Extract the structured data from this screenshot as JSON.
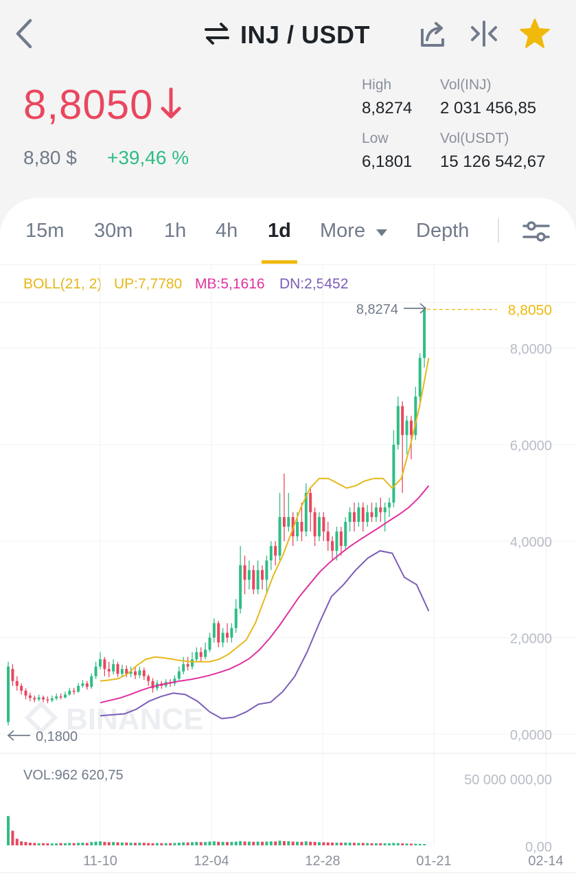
{
  "header": {
    "pair": "INJ / USDT",
    "icons": [
      "back-icon",
      "swap-icon",
      "share-icon",
      "compare-icon",
      "favorite-star-icon"
    ]
  },
  "ticker": {
    "last_price": "8,8050",
    "usd_price": "8,80 $",
    "change_pct": "+39,46 %",
    "high_label": "High",
    "high_value": "8,8274",
    "low_label": "Low",
    "low_value": "6,1801",
    "vol_base_label": "Vol(INJ)",
    "vol_base_value": "2 031 456,85",
    "vol_quote_label": "Vol(USDT)",
    "vol_quote_value": "15 126 542,67"
  },
  "tabs": {
    "items": [
      "15m",
      "30m",
      "1h",
      "4h",
      "1d",
      "More",
      "Depth"
    ],
    "active": "1d"
  },
  "indicator": {
    "name": "BOLL(21, 2)",
    "up": "UP:7,7780",
    "mb": "MB:5,1616",
    "dn": "DN:2,5452"
  },
  "colors": {
    "up": "#2ebd85",
    "down": "#e9475f",
    "accent": "#f0b90b",
    "boll_up": "#e6b81a",
    "boll_mb": "#e0309f",
    "boll_dn": "#7b5cb8"
  },
  "chart_data": {
    "type": "candlestick",
    "y_ticks": [
      "8,0000",
      "6,0000",
      "4,0000",
      "2,0000",
      "0,0000"
    ],
    "ylim": [
      0,
      8.8274
    ],
    "x_ticks": [
      "11-10",
      "12-04",
      "12-28",
      "01-21",
      "02-14"
    ],
    "high_marker": "8,8274",
    "low_marker": "0,1800",
    "last_price_tag": "8,8050",
    "watermark": "BINANCE",
    "candles": [
      [
        0.25,
        1.4,
        1.5,
        0.18
      ],
      [
        1.35,
        1.1,
        1.45,
        1.0
      ],
      [
        1.1,
        1.0,
        1.2,
        0.9
      ],
      [
        1.0,
        0.9,
        1.05,
        0.82
      ],
      [
        0.9,
        0.8,
        0.95,
        0.72
      ],
      [
        0.8,
        0.75,
        0.86,
        0.68
      ],
      [
        0.75,
        0.72,
        0.8,
        0.66
      ],
      [
        0.72,
        0.76,
        0.82,
        0.68
      ],
      [
        0.76,
        0.72,
        0.8,
        0.66
      ],
      [
        0.72,
        0.7,
        0.78,
        0.64
      ],
      [
        0.7,
        0.74,
        0.8,
        0.66
      ],
      [
        0.74,
        0.78,
        0.84,
        0.7
      ],
      [
        0.78,
        0.76,
        0.84,
        0.72
      ],
      [
        0.76,
        0.82,
        0.88,
        0.74
      ],
      [
        0.82,
        0.9,
        0.96,
        0.8
      ],
      [
        0.9,
        0.88,
        0.96,
        0.82
      ],
      [
        0.88,
        1.0,
        1.06,
        0.86
      ],
      [
        1.0,
        1.05,
        1.12,
        0.96
      ],
      [
        1.05,
        0.98,
        1.1,
        0.92
      ],
      [
        0.98,
        1.2,
        1.26,
        0.94
      ],
      [
        1.2,
        1.4,
        1.5,
        1.14
      ],
      [
        1.4,
        1.55,
        1.7,
        1.34
      ],
      [
        1.55,
        1.35,
        1.6,
        1.2
      ],
      [
        1.35,
        1.3,
        1.5,
        1.18
      ],
      [
        1.3,
        1.45,
        1.55,
        1.24
      ],
      [
        1.45,
        1.25,
        1.5,
        1.18
      ],
      [
        1.25,
        1.35,
        1.44,
        1.2
      ],
      [
        1.35,
        1.25,
        1.42,
        1.18
      ],
      [
        1.25,
        1.3,
        1.4,
        1.18
      ],
      [
        1.3,
        1.22,
        1.38,
        1.14
      ],
      [
        1.22,
        1.32,
        1.4,
        1.16
      ],
      [
        1.32,
        1.2,
        1.38,
        1.12
      ],
      [
        1.2,
        1.1,
        1.24,
        1.0
      ],
      [
        1.1,
        0.95,
        1.16,
        0.86
      ],
      [
        0.95,
        1.05,
        1.12,
        0.9
      ],
      [
        1.05,
        1.0,
        1.1,
        0.94
      ],
      [
        1.0,
        1.08,
        1.14,
        0.96
      ],
      [
        1.08,
        1.05,
        1.14,
        0.98
      ],
      [
        1.05,
        1.15,
        1.22,
        1.0
      ],
      [
        1.15,
        1.3,
        1.4,
        1.1
      ],
      [
        1.3,
        1.45,
        1.6,
        1.24
      ],
      [
        1.45,
        1.4,
        1.6,
        1.32
      ],
      [
        1.4,
        1.55,
        1.7,
        1.34
      ],
      [
        1.55,
        1.7,
        1.8,
        1.5
      ],
      [
        1.7,
        1.6,
        1.8,
        1.5
      ],
      [
        1.6,
        1.75,
        1.9,
        1.55
      ],
      [
        1.75,
        2.0,
        2.1,
        1.7
      ],
      [
        2.0,
        2.3,
        2.4,
        1.9
      ],
      [
        2.3,
        1.9,
        2.35,
        1.8
      ],
      [
        1.9,
        2.1,
        2.2,
        1.8
      ],
      [
        2.1,
        2.0,
        2.3,
        1.9
      ],
      [
        2.0,
        2.2,
        2.3,
        1.9
      ],
      [
        2.2,
        2.6,
        2.8,
        2.1
      ],
      [
        2.6,
        3.5,
        3.9,
        2.5
      ],
      [
        3.5,
        3.2,
        3.7,
        2.9
      ],
      [
        3.2,
        3.4,
        3.6,
        3.0
      ],
      [
        3.4,
        3.0,
        3.5,
        2.9
      ],
      [
        3.0,
        3.4,
        3.6,
        2.9
      ],
      [
        3.4,
        3.2,
        3.5,
        3.0
      ],
      [
        3.2,
        3.6,
        3.7,
        2.9
      ],
      [
        3.6,
        3.9,
        4.0,
        3.4
      ],
      [
        3.9,
        3.7,
        4.0,
        3.5
      ],
      [
        3.7,
        4.5,
        5.0,
        3.6
      ],
      [
        4.5,
        4.3,
        5.4,
        4.0
      ],
      [
        4.3,
        4.5,
        5.0,
        4.2
      ],
      [
        4.5,
        4.1,
        4.6,
        3.9
      ],
      [
        4.1,
        4.4,
        4.6,
        4.0
      ],
      [
        4.4,
        4.2,
        4.8,
        4.0
      ],
      [
        4.2,
        5.0,
        5.2,
        4.1
      ],
      [
        5.0,
        4.6,
        5.1,
        4.2
      ],
      [
        4.6,
        4.1,
        4.7,
        3.9
      ],
      [
        4.1,
        4.5,
        4.6,
        4.0
      ],
      [
        4.5,
        4.2,
        4.6,
        4.0
      ],
      [
        4.2,
        4.0,
        4.4,
        3.8
      ],
      [
        4.0,
        3.8,
        4.1,
        3.6
      ],
      [
        3.8,
        4.2,
        4.3,
        3.6
      ],
      [
        4.2,
        3.9,
        4.3,
        3.7
      ],
      [
        3.9,
        4.4,
        4.5,
        3.8
      ],
      [
        4.4,
        4.6,
        4.7,
        4.2
      ],
      [
        4.6,
        4.4,
        4.8,
        4.2
      ],
      [
        4.4,
        4.7,
        4.8,
        4.3
      ],
      [
        4.7,
        4.4,
        4.8,
        4.2
      ],
      [
        4.4,
        4.6,
        4.75,
        4.3
      ],
      [
        4.6,
        4.5,
        4.8,
        4.4
      ],
      [
        4.5,
        4.7,
        4.8,
        4.4
      ],
      [
        4.7,
        4.6,
        4.9,
        4.4
      ],
      [
        4.6,
        4.7,
        4.8,
        4.2
      ],
      [
        4.7,
        4.8,
        4.9,
        4.5
      ],
      [
        4.8,
        6.0,
        6.3,
        4.7
      ],
      [
        6.0,
        6.8,
        7.0,
        5.9
      ],
      [
        6.8,
        6.2,
        6.9,
        5.0
      ],
      [
        6.2,
        6.5,
        6.6,
        5.8
      ],
      [
        6.5,
        6.2,
        6.6,
        5.7
      ],
      [
        6.2,
        7.0,
        7.2,
        6.1
      ],
      [
        7.0,
        7.8,
        7.9,
        6.8
      ],
      [
        7.8,
        8.81,
        8.83,
        7.6
      ]
    ],
    "boll_up": [
      1.1,
      1.12,
      1.15,
      1.25,
      1.42,
      1.55,
      1.6,
      1.58,
      1.55,
      1.52,
      1.5,
      1.5,
      1.5,
      1.55,
      1.65,
      1.8,
      1.95,
      2.3,
      2.8,
      3.3,
      3.7,
      4.2,
      4.7,
      5.1,
      5.3,
      5.3,
      5.2,
      5.1,
      5.15,
      5.25,
      5.3,
      5.3,
      5.1,
      5.3,
      6.0,
      6.8,
      7.8
    ],
    "boll_mb": [
      0.65,
      0.7,
      0.75,
      0.82,
      0.9,
      0.97,
      1.02,
      1.06,
      1.1,
      1.13,
      1.17,
      1.22,
      1.28,
      1.35,
      1.45,
      1.57,
      1.75,
      1.98,
      2.25,
      2.55,
      2.85,
      3.1,
      3.35,
      3.55,
      3.72,
      3.88,
      4.02,
      4.15,
      4.28,
      4.42,
      4.55,
      4.7,
      4.9,
      5.15
    ],
    "boll_dn": [
      0.38,
      0.4,
      0.42,
      0.52,
      0.68,
      0.78,
      0.85,
      0.82,
      0.68,
      0.46,
      0.32,
      0.35,
      0.46,
      0.62,
      0.66,
      0.88,
      1.2,
      1.7,
      2.3,
      2.85,
      3.1,
      3.4,
      3.65,
      3.8,
      3.75,
      3.25,
      3.1,
      2.55
    ],
    "volume": {
      "label": "VOL:962 620,75",
      "y_ticks": [
        "50 000 000,00",
        "0,00"
      ],
      "ylim": [
        0,
        50000000
      ],
      "values": [
        22000000,
        11000000,
        5000000,
        3000000,
        2500000,
        2000000,
        1800000,
        1500000,
        1600000,
        1500000,
        1400000,
        1500000,
        1700000,
        1600000,
        1800000,
        1700000,
        1900000,
        2000000,
        1800000,
        2500000,
        2800000,
        3000000,
        2600000,
        2400000,
        2500000,
        2300000,
        2200000,
        2100000,
        2000000,
        1900000,
        2000000,
        1900000,
        1700000,
        1600000,
        1700000,
        1650000,
        1700000,
        1650000,
        1800000,
        2000000,
        2300000,
        2200000,
        2400000,
        2600000,
        2400000,
        2500000,
        2800000,
        3000000,
        2700000,
        2600000,
        2500000,
        2600000,
        2800000,
        3200000,
        2900000,
        2800000,
        2700000,
        2800000,
        2700000,
        2800000,
        3000000,
        2900000,
        3500000,
        3200000,
        3100000,
        2800000,
        2700000,
        2600000,
        3000000,
        2700000,
        2600000,
        2400000,
        2300000,
        2200000,
        2100000,
        2000000,
        2000000,
        2100000,
        2000000,
        1900000,
        1800000,
        1800000,
        1700000,
        1600000,
        1600000,
        1600000,
        1500000,
        1500000,
        1800000,
        1700000,
        1500000,
        1400000,
        1300000,
        1200000,
        1100000,
        1000000
      ]
    }
  }
}
